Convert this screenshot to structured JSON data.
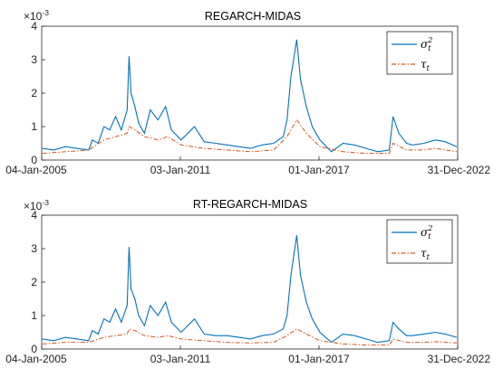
{
  "chart_data": [
    {
      "type": "line",
      "title": "REGARCH-MIDAS",
      "y_exponent_label": "×10⁻³",
      "y_exponent_base": "×10",
      "y_exponent_power": "-3",
      "ylim": [
        0,
        4
      ],
      "yticks": [
        "0",
        "1",
        "2",
        "3",
        "4"
      ],
      "xlim": [
        "2005-01-04",
        "2022-12-31"
      ],
      "xticks": [
        {
          "date": "2005-01-04",
          "label": "04-Jan-2005"
        },
        {
          "date": "2011-01-03",
          "label": "03-Jan-2011"
        },
        {
          "date": "2017-01-01",
          "label": "01-Jan-2017"
        },
        {
          "date": "2022-12-31",
          "label": "31-Dec-2022"
        }
      ],
      "grid": false,
      "legend_location": "top-right",
      "series": [
        {
          "name": "σt2",
          "legend_base": "σ",
          "legend_sub": "t",
          "legend_sup": "2",
          "color": "#0072BD",
          "style": "solid",
          "x": [
            "2005-01",
            "2005-07",
            "2006-01",
            "2006-07",
            "2007-01",
            "2007-03",
            "2007-06",
            "2007-09",
            "2007-12",
            "2008-03",
            "2008-06",
            "2008-09",
            "2008-10",
            "2008-11",
            "2009-01",
            "2009-03",
            "2009-06",
            "2009-09",
            "2010-01",
            "2010-05",
            "2010-08",
            "2011-01",
            "2011-08",
            "2012-01",
            "2012-07",
            "2013-01",
            "2013-07",
            "2014-01",
            "2014-07",
            "2015-01",
            "2015-06",
            "2015-08",
            "2015-10",
            "2016-01",
            "2016-03",
            "2016-06",
            "2016-09",
            "2017-01",
            "2017-07",
            "2018-01",
            "2018-07",
            "2019-01",
            "2019-07",
            "2020-01",
            "2020-03",
            "2020-06",
            "2020-10",
            "2021-01",
            "2021-07",
            "2022-01",
            "2022-06",
            "2022-12"
          ],
          "y": [
            0.35,
            0.3,
            0.4,
            0.35,
            0.3,
            0.6,
            0.5,
            1.0,
            0.9,
            1.3,
            0.9,
            1.5,
            3.1,
            2.0,
            1.6,
            1.1,
            0.8,
            1.5,
            1.2,
            1.6,
            0.9,
            0.6,
            1.0,
            0.55,
            0.5,
            0.45,
            0.4,
            0.35,
            0.45,
            0.5,
            0.7,
            1.2,
            2.5,
            3.6,
            2.4,
            1.6,
            1.0,
            0.6,
            0.25,
            0.5,
            0.45,
            0.35,
            0.25,
            0.3,
            1.3,
            0.8,
            0.5,
            0.45,
            0.5,
            0.6,
            0.55,
            0.4
          ]
        },
        {
          "name": "τt",
          "legend_base": "τ",
          "legend_sub": "t",
          "color": "#D95319",
          "style": "dash-dot",
          "x": [
            "2005-01",
            "2006-01",
            "2007-01",
            "2007-09",
            "2008-03",
            "2008-09",
            "2008-10",
            "2009-01",
            "2009-06",
            "2010-01",
            "2010-06",
            "2011-01",
            "2012-01",
            "2013-01",
            "2014-01",
            "2015-01",
            "2015-08",
            "2016-01",
            "2016-06",
            "2017-01",
            "2018-01",
            "2019-01",
            "2020-01",
            "2020-03",
            "2020-10",
            "2021-07",
            "2022-01",
            "2022-12"
          ],
          "y": [
            0.2,
            0.25,
            0.3,
            0.6,
            0.7,
            0.8,
            1.0,
            0.9,
            0.7,
            0.6,
            0.7,
            0.45,
            0.35,
            0.3,
            0.25,
            0.3,
            0.7,
            1.2,
            0.8,
            0.4,
            0.25,
            0.2,
            0.2,
            0.5,
            0.3,
            0.3,
            0.35,
            0.25
          ]
        }
      ]
    },
    {
      "type": "line",
      "title": "RT-REGARCH-MIDAS",
      "y_exponent_label": "×10⁻³",
      "y_exponent_base": "×10",
      "y_exponent_power": "-3",
      "ylim": [
        0,
        4
      ],
      "yticks": [
        "0",
        "1",
        "2",
        "3",
        "4"
      ],
      "xlim": [
        "2005-01-04",
        "2022-12-31"
      ],
      "xticks": [
        {
          "date": "2005-01-04",
          "label": "04-Jan-2005"
        },
        {
          "date": "2011-01-03",
          "label": "03-Jan-2011"
        },
        {
          "date": "2017-01-01",
          "label": "01-Jan-2017"
        },
        {
          "date": "2022-12-31",
          "label": "31-Dec-2022"
        }
      ],
      "grid": false,
      "legend_location": "top-right",
      "series": [
        {
          "name": "σt2",
          "legend_base": "σ",
          "legend_sub": "t",
          "legend_sup": "2",
          "color": "#0072BD",
          "style": "solid",
          "x": [
            "2005-01",
            "2005-07",
            "2006-01",
            "2006-07",
            "2007-01",
            "2007-03",
            "2007-06",
            "2007-09",
            "2007-12",
            "2008-03",
            "2008-06",
            "2008-09",
            "2008-10",
            "2008-11",
            "2009-01",
            "2009-03",
            "2009-06",
            "2009-09",
            "2010-01",
            "2010-05",
            "2010-08",
            "2011-01",
            "2011-08",
            "2012-01",
            "2012-07",
            "2013-01",
            "2013-07",
            "2014-01",
            "2014-07",
            "2015-01",
            "2015-06",
            "2015-08",
            "2015-10",
            "2016-01",
            "2016-03",
            "2016-06",
            "2016-09",
            "2017-01",
            "2017-07",
            "2018-01",
            "2018-07",
            "2019-01",
            "2019-07",
            "2020-01",
            "2020-03",
            "2020-06",
            "2020-10",
            "2021-01",
            "2021-07",
            "2022-01",
            "2022-06",
            "2022-12"
          ],
          "y": [
            0.3,
            0.25,
            0.35,
            0.3,
            0.25,
            0.55,
            0.45,
            0.9,
            0.8,
            1.2,
            0.8,
            1.3,
            3.05,
            1.8,
            1.5,
            1.0,
            0.7,
            1.3,
            1.0,
            1.4,
            0.8,
            0.5,
            0.9,
            0.45,
            0.4,
            0.4,
            0.35,
            0.3,
            0.4,
            0.45,
            0.6,
            1.0,
            2.2,
            3.4,
            2.2,
            1.4,
            0.9,
            0.5,
            0.2,
            0.45,
            0.4,
            0.3,
            0.2,
            0.25,
            0.8,
            0.6,
            0.4,
            0.4,
            0.45,
            0.5,
            0.45,
            0.35
          ]
        },
        {
          "name": "τt",
          "legend_base": "τ",
          "legend_sub": "t",
          "color": "#D95319",
          "style": "dash-dot",
          "x": [
            "2005-01",
            "2006-01",
            "2007-01",
            "2007-09",
            "2008-03",
            "2008-09",
            "2008-10",
            "2009-01",
            "2009-06",
            "2010-01",
            "2010-06",
            "2011-01",
            "2012-01",
            "2013-01",
            "2014-01",
            "2015-01",
            "2015-08",
            "2016-01",
            "2016-06",
            "2017-01",
            "2018-01",
            "2019-01",
            "2020-01",
            "2020-03",
            "2020-10",
            "2021-07",
            "2022-01",
            "2022-12"
          ],
          "y": [
            0.15,
            0.2,
            0.2,
            0.35,
            0.4,
            0.45,
            0.6,
            0.55,
            0.4,
            0.35,
            0.4,
            0.3,
            0.25,
            0.2,
            0.18,
            0.2,
            0.4,
            0.6,
            0.45,
            0.25,
            0.15,
            0.12,
            0.12,
            0.3,
            0.2,
            0.2,
            0.22,
            0.18
          ]
        }
      ]
    }
  ]
}
